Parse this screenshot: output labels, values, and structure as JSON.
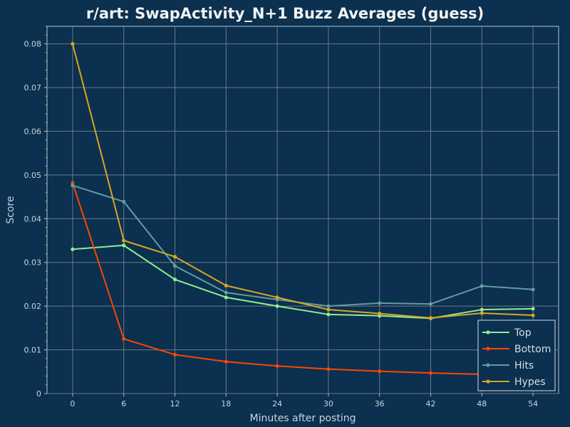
{
  "chart_data": {
    "type": "line",
    "title": "r/art: SwapActivity_N+1 Buzz Averages (guess)",
    "xlabel": "Minutes after posting",
    "ylabel": "Score",
    "x": [
      0,
      6,
      12,
      18,
      24,
      30,
      36,
      42,
      48,
      54
    ],
    "xticks": [
      "0",
      "6",
      "12",
      "18",
      "24",
      "30",
      "36",
      "42",
      "48",
      "54"
    ],
    "xlim": [
      -3,
      57
    ],
    "ylim": [
      0,
      0.084
    ],
    "yticks": [
      "0",
      "0.01",
      "0.02",
      "0.03",
      "0.04",
      "0.05",
      "0.06",
      "0.07",
      "0.08"
    ],
    "ytick_values": [
      0,
      0.01,
      0.02,
      0.03,
      0.04,
      0.05,
      0.06,
      0.07,
      0.08
    ],
    "grid": true,
    "legend_position": "bottom-right",
    "series": [
      {
        "name": "Top",
        "color": "#90ee90",
        "values": [
          0.033,
          0.0339,
          0.0261,
          0.022,
          0.02,
          0.0181,
          0.0178,
          0.0172,
          0.0192,
          0.0194
        ]
      },
      {
        "name": "Bottom",
        "color": "#ff4500",
        "values": [
          0.0482,
          0.0125,
          0.0089,
          0.0073,
          0.0063,
          0.0056,
          0.0051,
          0.0047,
          0.0044,
          0.0041
        ]
      },
      {
        "name": "Hits",
        "color": "#5f9ea0",
        "values": [
          0.0476,
          0.0439,
          0.0292,
          0.0231,
          0.0215,
          0.02,
          0.0207,
          0.0205,
          0.0246,
          0.0238
        ]
      },
      {
        "name": "Hypes",
        "color": "#daa520",
        "values": [
          0.08,
          0.035,
          0.0313,
          0.0247,
          0.022,
          0.0192,
          0.0183,
          0.0173,
          0.0184,
          0.0179
        ]
      }
    ]
  }
}
